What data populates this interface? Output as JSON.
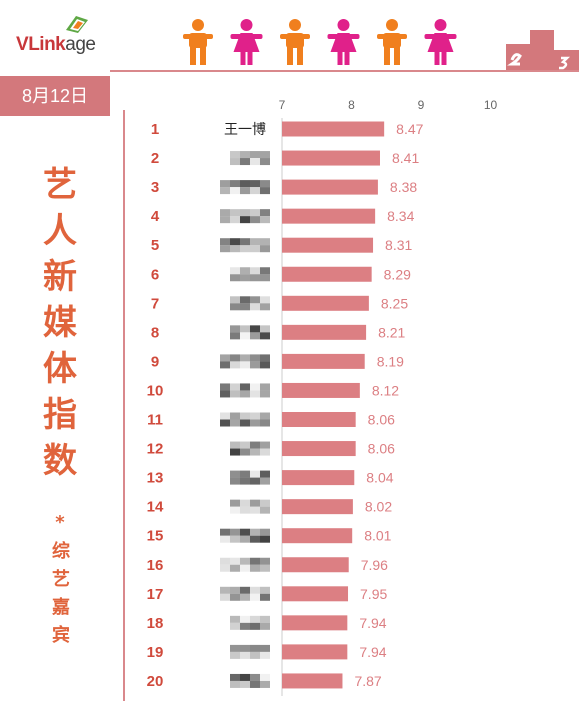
{
  "header": {
    "logo": {
      "v": "V",
      "link": "Link",
      "age": "age"
    },
    "figures": [
      "male",
      "female",
      "male",
      "female",
      "male",
      "female"
    ],
    "colors": {
      "male": "#f07f1e",
      "female": "#e0218a",
      "accent": "#d3787c",
      "title": "#e0643c"
    }
  },
  "date_badge": "8月12日",
  "side_title": [
    "艺",
    "人",
    "新",
    "媒",
    "体",
    "指",
    "数"
  ],
  "side_star": "*",
  "side_subtitle": [
    "综",
    "艺",
    "嘉",
    "宾"
  ],
  "chart_data": {
    "type": "bar",
    "orientation": "horizontal",
    "xlim": [
      7,
      10
    ],
    "xticks": [
      7,
      8,
      9,
      10
    ],
    "bar_color": "#dc7f83",
    "label_color": "#dc7f83",
    "categories": [
      "王一博",
      "",
      "",
      "",
      "",
      "",
      "",
      "",
      "",
      "",
      "",
      "",
      "",
      "",
      "",
      "",
      "",
      "",
      "",
      ""
    ],
    "ranks": [
      1,
      2,
      3,
      4,
      5,
      6,
      7,
      8,
      9,
      10,
      11,
      12,
      13,
      14,
      15,
      16,
      17,
      18,
      19,
      20
    ],
    "values": [
      8.47,
      8.41,
      8.38,
      8.34,
      8.31,
      8.29,
      8.25,
      8.21,
      8.19,
      8.12,
      8.06,
      8.06,
      8.04,
      8.02,
      8.01,
      7.96,
      7.95,
      7.94,
      7.94,
      7.87
    ],
    "value_labels": [
      "8.47",
      "8.41",
      "8.38",
      "8.34",
      "8.31",
      "8.29",
      "8.25",
      "8.21",
      "8.19",
      "8.12",
      "8.06",
      "8.06",
      "8.04",
      "8.02",
      "8.01",
      "7.96",
      "7.95",
      "7.94",
      "7.94",
      "7.87"
    ]
  }
}
